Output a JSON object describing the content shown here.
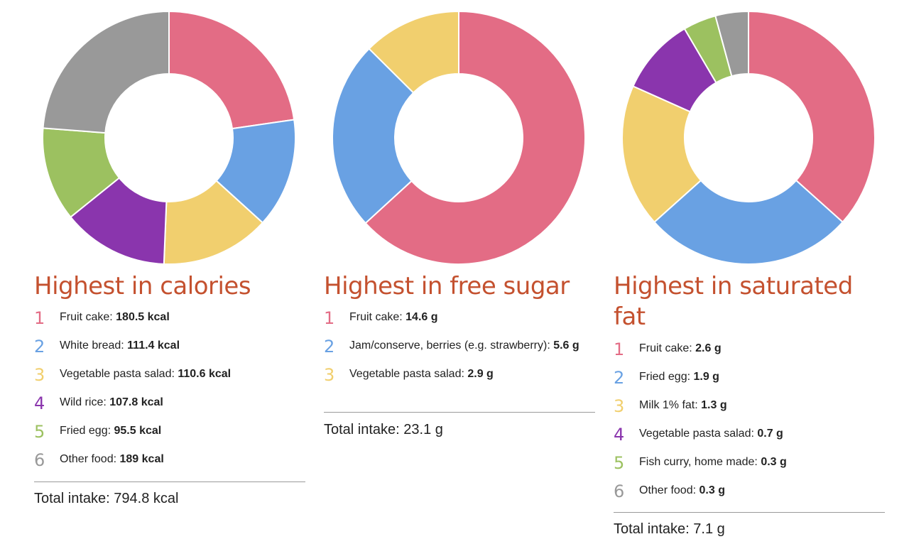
{
  "colors": {
    "title": "#c4512f",
    "series": [
      "#e36c85",
      "#69a1e3",
      "#f1cf6e",
      "#8a35ad",
      "#9cc160",
      "#999999"
    ]
  },
  "chart_data": [
    {
      "type": "pie",
      "donut": true,
      "title": "Highest in calories",
      "unit": "kcal",
      "labels": [
        "Fruit cake",
        "White bread",
        "Vegetable pasta salad",
        "Wild rice",
        "Fried egg",
        "Other food"
      ],
      "values": [
        180.5,
        111.4,
        110.6,
        107.8,
        95.5,
        189
      ],
      "value_labels": [
        "180.5 kcal",
        "111.4 kcal",
        "110.6 kcal",
        "107.8 kcal",
        "95.5 kcal",
        "189 kcal"
      ],
      "ranks": [
        "1",
        "2",
        "3",
        "4",
        "5",
        "6"
      ],
      "total_label": "Total intake:",
      "total_value": "794.8 kcal"
    },
    {
      "type": "pie",
      "donut": true,
      "title": "Highest in free sugar",
      "unit": "g",
      "labels": [
        "Fruit cake",
        "Jam/conserve, berries (e.g. strawberry)",
        "Vegetable pasta salad"
      ],
      "values": [
        14.6,
        5.6,
        2.9
      ],
      "value_labels": [
        "14.6 g",
        "5.6 g",
        "2.9 g"
      ],
      "ranks": [
        "1",
        "2",
        "3"
      ],
      "total_label": "Total intake:",
      "total_value": "23.1 g"
    },
    {
      "type": "pie",
      "donut": true,
      "title": "Highest in saturated fat",
      "unit": "g",
      "labels": [
        "Fruit cake",
        "Fried egg",
        "Milk 1% fat",
        "Vegetable pasta salad",
        "Fish curry, home made",
        "Other food"
      ],
      "values": [
        2.6,
        1.9,
        1.3,
        0.7,
        0.3,
        0.3
      ],
      "value_labels": [
        "2.6 g",
        "1.9 g",
        "1.3 g",
        "0.7 g",
        "0.3 g",
        "0.3 g"
      ],
      "ranks": [
        "1",
        "2",
        "3",
        "4",
        "5",
        "6"
      ],
      "total_label": "Total intake:",
      "total_value": "7.1 g"
    }
  ]
}
